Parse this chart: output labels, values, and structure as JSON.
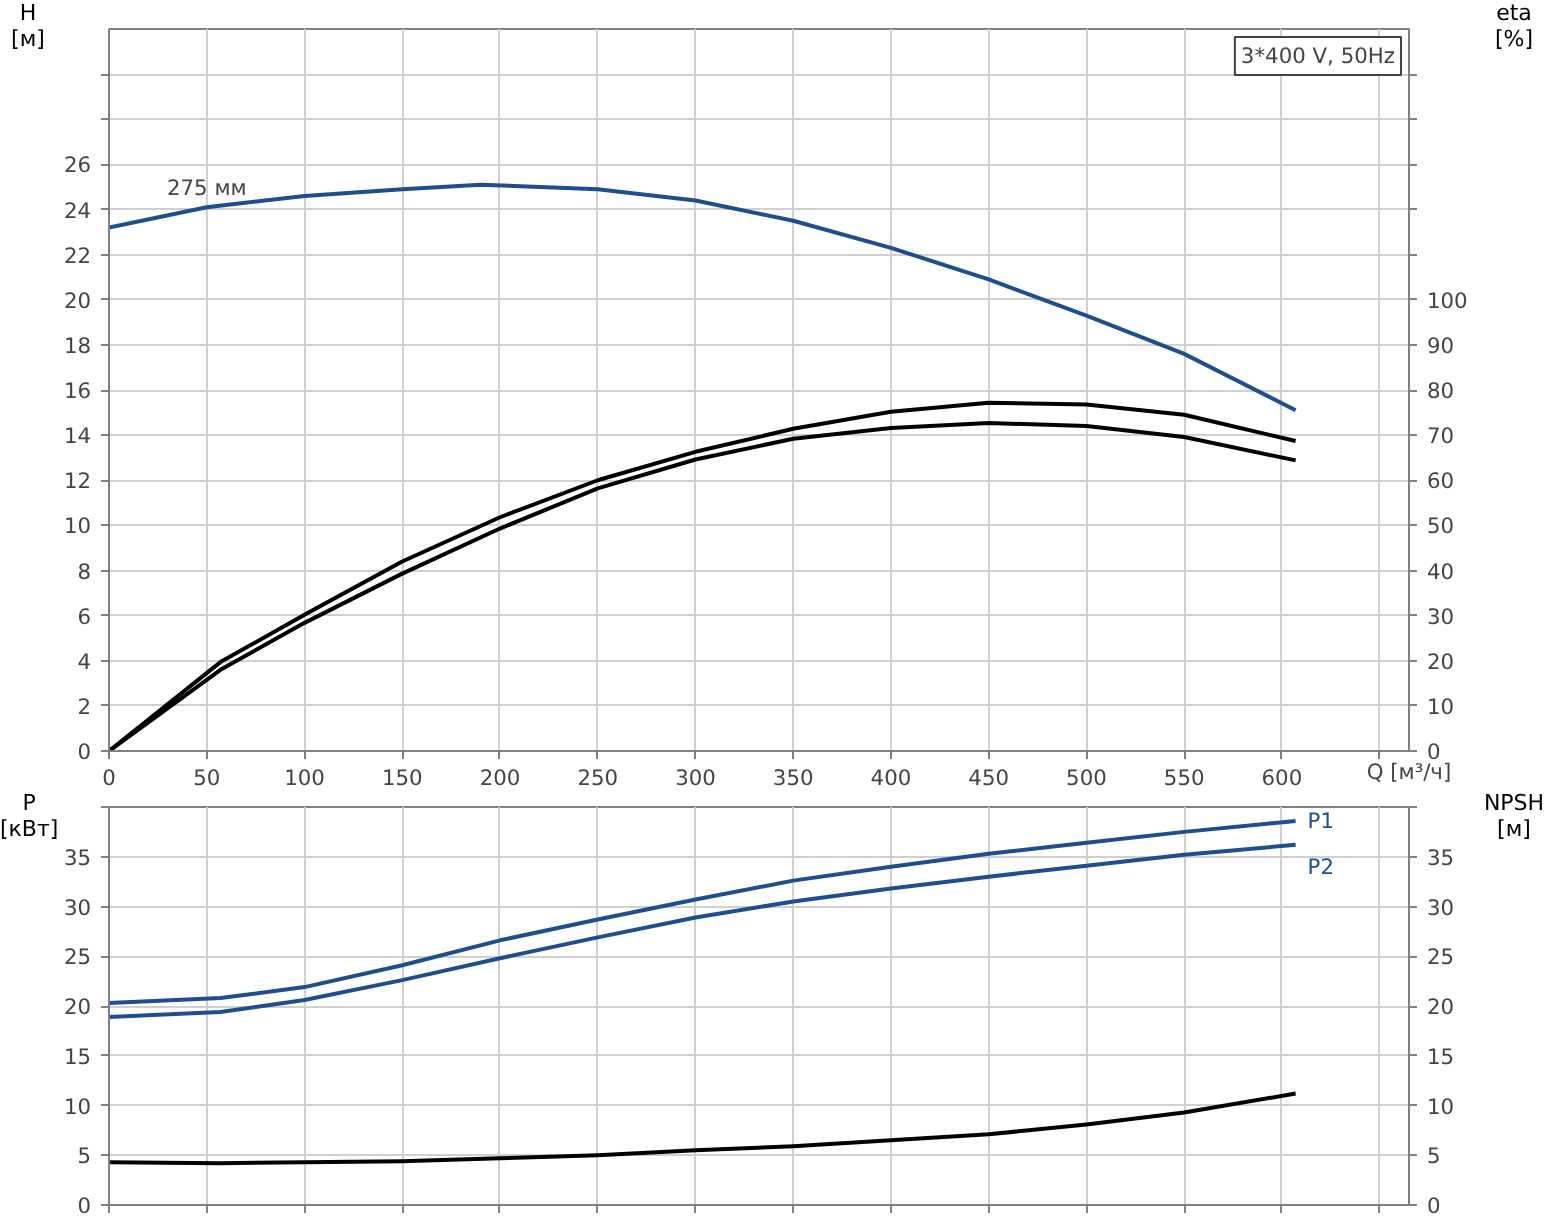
{
  "chart_data": [
    {
      "type": "line",
      "title": "3*400 V, 50Hz",
      "xlabel": "Q [м³/ч]",
      "ylabel": "H [м]",
      "y2label": "eta [%]",
      "x": [
        0,
        50,
        100,
        150,
        190,
        250,
        300,
        350,
        400,
        450,
        500,
        550,
        607
      ],
      "xlim": [
        0,
        665
      ],
      "xticks": [
        0,
        50,
        100,
        150,
        200,
        250,
        300,
        350,
        400,
        450,
        500,
        550,
        600,
        {
          "value": 650,
          "label": null
        }
      ],
      "ylim": [
        0,
        32
      ],
      "yticks": [
        0,
        2,
        4,
        6,
        8,
        10,
        12,
        14,
        16,
        18,
        20,
        22,
        24,
        26,
        {
          "value": 28,
          "label": null
        },
        {
          "value": 30,
          "label": null
        }
      ],
      "y2lim": [
        0,
        160
      ],
      "y2ticks": [
        0,
        10,
        20,
        30,
        40,
        50,
        60,
        70,
        80,
        90,
        100,
        {
          "value": 110,
          "label": null
        },
        {
          "value": 120,
          "label": null
        },
        {
          "value": 130,
          "label": null
        },
        {
          "value": 140,
          "label": null
        },
        {
          "value": 150,
          "label": null
        }
      ],
      "grid": true,
      "annotations": [
        {
          "text": "275 мм",
          "x": 50,
          "y": 24.1
        }
      ],
      "series": [
        {
          "color": "#1f4e8c",
          "values": [
            23.2,
            24.1,
            24.6,
            24.9,
            25.1,
            24.9,
            24.4,
            23.5,
            22.3,
            20.9,
            19.3,
            17.6,
            15.1
          ]
        },
        {
          "color": "#000000",
          "axis": "y2",
          "x": [
            0,
            57,
            100,
            150,
            200,
            250,
            300,
            350,
            400,
            450,
            500,
            550,
            607
          ],
          "values": [
            0,
            19.7,
            30.2,
            42.0,
            51.8,
            60.0,
            66.3,
            71.4,
            75.2,
            77.2,
            76.8,
            74.5,
            68.7
          ]
        },
        {
          "color": "#000000",
          "axis": "y2",
          "x": [
            0,
            57,
            100,
            150,
            200,
            250,
            300,
            350,
            400,
            450,
            500,
            550,
            607
          ],
          "values": [
            0,
            18.0,
            28.4,
            39.3,
            49.3,
            58.2,
            64.6,
            69.2,
            71.6,
            72.7,
            72.0,
            69.6,
            64.4
          ]
        }
      ]
    },
    {
      "type": "line",
      "ylabel": "P [кВт]",
      "y2label": "NPSH [м]",
      "x": [
        0,
        57,
        100,
        150,
        200,
        250,
        300,
        350,
        400,
        450,
        500,
        550,
        607
      ],
      "xlim": [
        0,
        665
      ],
      "xticks": [
        0,
        50,
        100,
        150,
        200,
        250,
        300,
        350,
        400,
        450,
        500,
        550,
        600,
        650
      ],
      "ylim": [
        0,
        40
      ],
      "yticks": [
        0,
        5,
        10,
        15,
        20,
        25,
        30,
        35,
        {
          "value": 40,
          "label": null
        }
      ],
      "y2lim": [
        0,
        40
      ],
      "y2ticks": [
        0,
        5,
        10,
        15,
        20,
        25,
        30,
        35,
        {
          "value": 40,
          "label": null
        }
      ],
      "grid": true,
      "tick_labels": "y",
      "series": [
        {
          "name": "P1",
          "color": "#1f4e8c",
          "values": [
            20.3,
            20.8,
            21.9,
            24.1,
            26.6,
            28.7,
            30.7,
            32.6,
            34.0,
            35.3,
            36.4,
            37.5,
            38.6
          ]
        },
        {
          "name": "P2",
          "color": "#1f4e8c",
          "values": [
            18.9,
            19.4,
            20.6,
            22.6,
            24.8,
            26.9,
            28.9,
            30.5,
            31.8,
            33.0,
            34.1,
            35.2,
            36.2
          ]
        },
        {
          "color": "#000000",
          "axis": "y2",
          "values": [
            4.3,
            4.2,
            4.3,
            4.4,
            4.7,
            5.0,
            5.5,
            5.9,
            6.5,
            7.1,
            8.1,
            9.3,
            11.2
          ]
        }
      ]
    }
  ]
}
